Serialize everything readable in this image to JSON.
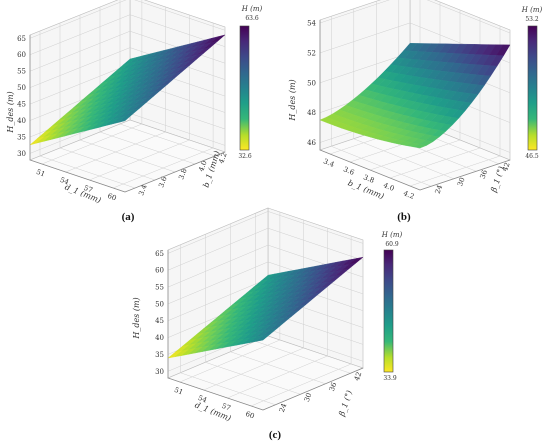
{
  "colors": {
    "viridis": [
      "#440154",
      "#482878",
      "#3e4989",
      "#31688e",
      "#26828e",
      "#1f9e89",
      "#35b779",
      "#6ece58",
      "#b5de2b",
      "#fde725"
    ],
    "grid": "#cfcfcf",
    "pane": "#f6f6f6"
  },
  "chart_data": [
    {
      "type": "surface",
      "panel": "(a)",
      "zlabel": "H_des (m)",
      "xlabel": "d_1 (mm)",
      "ylabel": "b_1 (mm)",
      "xticks": [
        "51",
        "54",
        "57",
        "60"
      ],
      "yticks": [
        "3.4",
        "3.6",
        "3.8",
        "4.0",
        "4.2"
      ],
      "zticks": [
        "30",
        "35",
        "40",
        "45",
        "50",
        "55",
        "60",
        "65"
      ],
      "zlim": [
        28,
        66
      ],
      "colorbar": {
        "title": "H (m)",
        "max": "63.6",
        "min": "32.6"
      },
      "x_range": [
        51,
        60
      ],
      "y_range": [
        3.4,
        4.2
      ],
      "z_min": 32.6,
      "z_max": 63.6
    },
    {
      "type": "surface",
      "panel": "(b)",
      "zlabel": "H_des (m)",
      "xlabel": "b_1 (mm)",
      "ylabel": "β_1 (°)",
      "xticks": [
        "3.4",
        "3.6",
        "3.8",
        "4.0",
        "4.2"
      ],
      "yticks": [
        "24",
        "30",
        "36",
        "42"
      ],
      "zticks": [
        "46",
        "48",
        "50",
        "52",
        "54"
      ],
      "zlim": [
        45.5,
        54.2
      ],
      "colorbar": {
        "title": "H (m)",
        "max": "53.2",
        "min": "46.5"
      },
      "x_range": [
        3.4,
        4.2
      ],
      "y_range": [
        24,
        42
      ],
      "z_min": 46.5,
      "z_max": 53.2
    },
    {
      "type": "surface",
      "panel": "(c)",
      "zlabel": "H_des (m)",
      "xlabel": "d_1 (mm)",
      "ylabel": "β_1 (°)",
      "xticks": [
        "51",
        "54",
        "57",
        "60"
      ],
      "yticks": [
        "24",
        "30",
        "36",
        "42"
      ],
      "zticks": [
        "30",
        "35",
        "40",
        "45",
        "50",
        "55",
        "60",
        "65"
      ],
      "zlim": [
        28,
        66
      ],
      "colorbar": {
        "title": "H (m)",
        "max": "60.9",
        "min": "33.9"
      },
      "x_range": [
        51,
        60
      ],
      "y_range": [
        24,
        42
      ],
      "z_min": 33.9,
      "z_max": 60.9
    }
  ],
  "captions": {
    "a": "(a)",
    "b": "(b)",
    "c": "(c)"
  }
}
